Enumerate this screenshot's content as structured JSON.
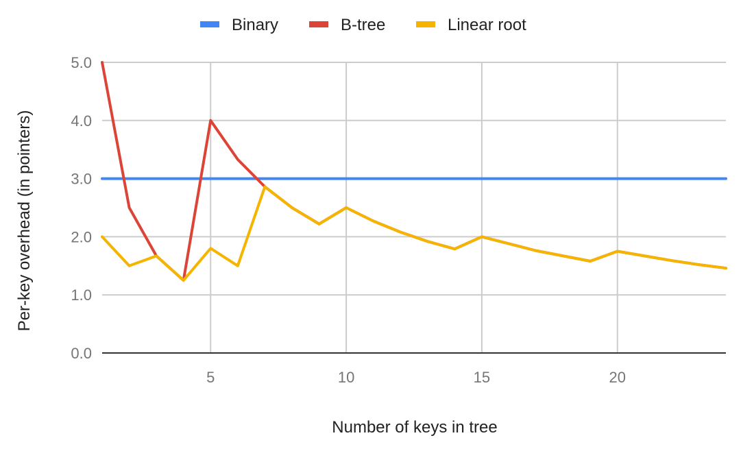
{
  "chart_data": {
    "type": "line",
    "title": "",
    "xlabel": "Number of keys in tree",
    "ylabel": "Per-key overhead (in pointers)",
    "xlim": [
      1,
      24
    ],
    "ylim": [
      0,
      5
    ],
    "x_ticks": [
      5,
      10,
      15,
      20
    ],
    "x_tick_labels": [
      "5",
      "10",
      "15",
      "20"
    ],
    "y_ticks": [
      0,
      1,
      2,
      3,
      4,
      5
    ],
    "y_tick_labels": [
      "0.0",
      "1.0",
      "2.0",
      "3.0",
      "4.0",
      "5.0"
    ],
    "grid": true,
    "legend_position": "top",
    "x": [
      1,
      2,
      3,
      4,
      5,
      6,
      7,
      8,
      9,
      10,
      11,
      12,
      13,
      14,
      15,
      16,
      17,
      18,
      19,
      20,
      21,
      22,
      23,
      24
    ],
    "series": [
      {
        "name": "Binary",
        "color": "#4285f4",
        "values": [
          3,
          3,
          3,
          3,
          3,
          3,
          3,
          3,
          3,
          3,
          3,
          3,
          3,
          3,
          3,
          3,
          3,
          3,
          3,
          3,
          3,
          3,
          3,
          3
        ]
      },
      {
        "name": "B-tree",
        "color": "#db4437",
        "values": [
          5.0,
          2.5,
          1.67,
          1.25,
          4.0,
          3.33,
          2.86,
          2.5,
          2.22,
          2.5,
          2.27,
          2.08,
          1.92,
          1.79,
          2.0,
          1.88,
          1.76,
          1.67,
          1.58,
          1.75,
          1.67,
          1.59,
          1.52,
          1.46
        ]
      },
      {
        "name": "Linear root",
        "color": "#f4b400",
        "values": [
          2.0,
          1.5,
          1.67,
          1.25,
          1.8,
          1.5,
          2.86,
          2.5,
          2.22,
          2.5,
          2.27,
          2.08,
          1.92,
          1.79,
          2.0,
          1.88,
          1.76,
          1.67,
          1.58,
          1.75,
          1.67,
          1.59,
          1.52,
          1.46
        ]
      }
    ]
  }
}
